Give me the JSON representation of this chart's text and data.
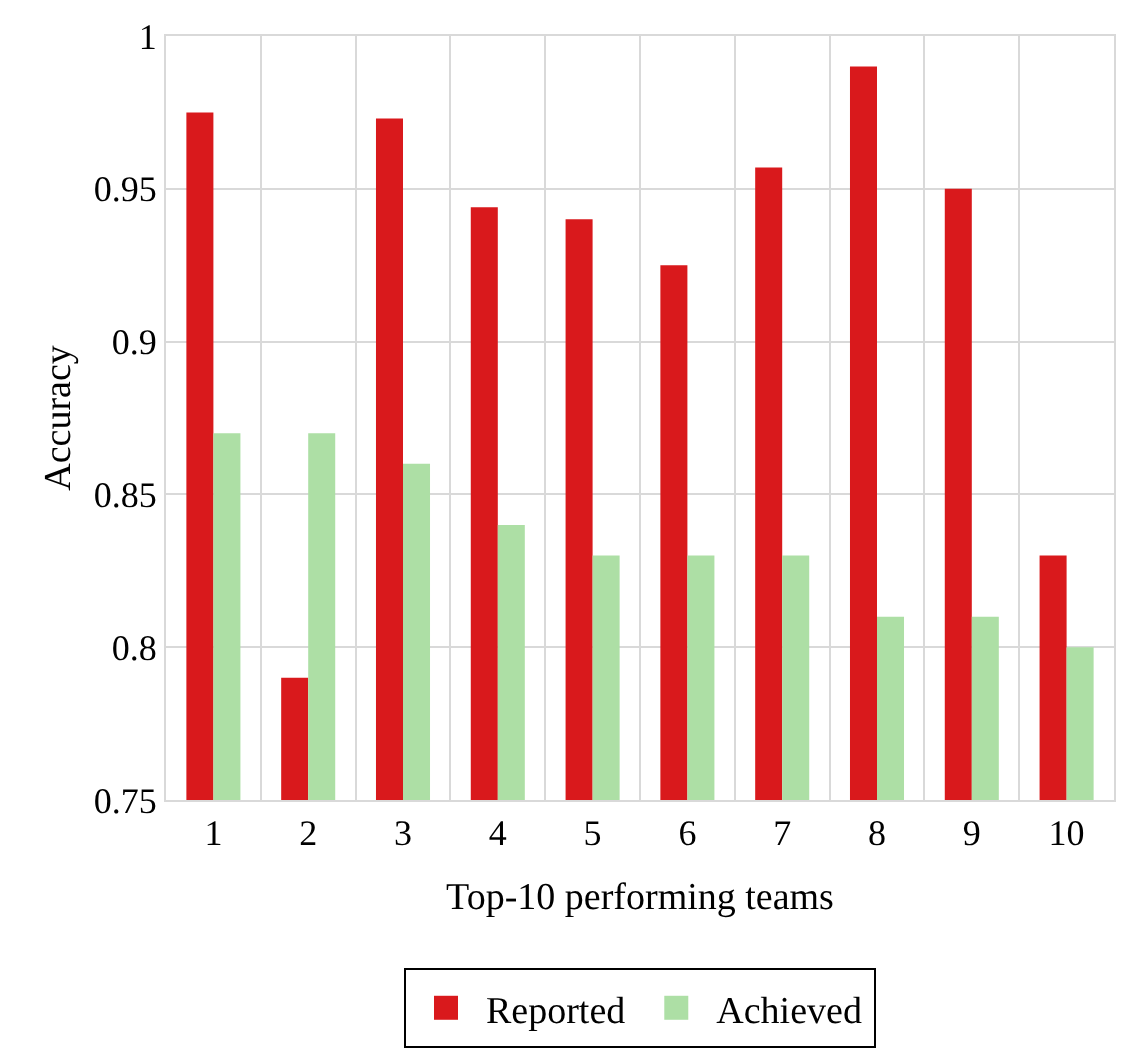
{
  "chart_data": {
    "type": "bar",
    "xlabel": "Top-10 performing teams",
    "ylabel": "Accuracy",
    "categories": [
      "1",
      "2",
      "3",
      "4",
      "5",
      "6",
      "7",
      "8",
      "9",
      "10"
    ],
    "series": [
      {
        "name": "Reported",
        "color": "#d9191c",
        "values": [
          0.975,
          0.79,
          0.973,
          0.944,
          0.94,
          0.925,
          0.957,
          0.99,
          0.95,
          0.83
        ]
      },
      {
        "name": "Achieved",
        "color": "#addfa5",
        "values": [
          0.87,
          0.87,
          0.86,
          0.84,
          0.83,
          0.83,
          0.83,
          0.81,
          0.81,
          0.8
        ]
      }
    ],
    "ylim": [
      0.75,
      1
    ],
    "yticks": [
      0.75,
      0.8,
      0.85,
      0.9,
      0.95,
      1
    ],
    "grid": true,
    "legend": "bottom"
  }
}
